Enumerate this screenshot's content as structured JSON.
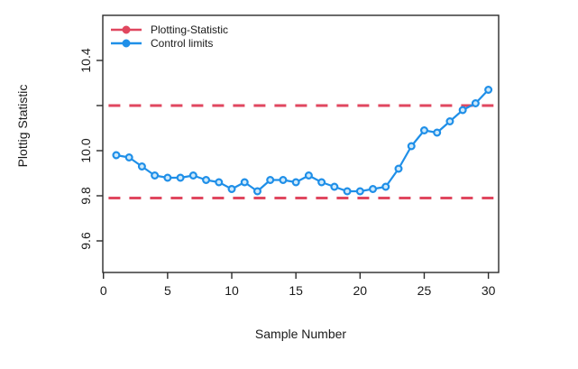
{
  "chart_data": {
    "type": "line",
    "title": "",
    "xlabel": "Sample Number",
    "ylabel": "Plottig Statistic",
    "xlim": [
      -0.05,
      30.8
    ],
    "ylim": [
      9.46,
      10.6
    ],
    "grid": false,
    "x_ticks": [
      0,
      5,
      10,
      15,
      20,
      25,
      30
    ],
    "y_ticks": [
      {
        "v": 10.4,
        "label": "10.4"
      },
      {
        "v": 10.2,
        "label": ""
      },
      {
        "v": 10.0,
        "label": "10.0"
      },
      {
        "v": 9.8,
        "label": "9.8"
      },
      {
        "v": 9.6,
        "label": "9.6"
      }
    ],
    "samples": [
      1,
      2,
      3,
      4,
      5,
      6,
      7,
      8,
      9,
      10,
      11,
      12,
      13,
      14,
      15,
      16,
      17,
      18,
      19,
      20,
      21,
      22,
      23,
      24,
      25,
      26,
      27,
      28,
      29,
      30
    ],
    "statistic": [
      9.98,
      9.97,
      9.93,
      9.89,
      9.88,
      9.88,
      9.89,
      9.87,
      9.86,
      9.83,
      9.86,
      9.82,
      9.87,
      9.87,
      9.86,
      9.89,
      9.86,
      9.84,
      9.82,
      9.82,
      9.83,
      9.84,
      9.92,
      10.02,
      10.09,
      10.08,
      10.13,
      10.18,
      10.21,
      10.27
    ],
    "upper_control_limit": 10.2,
    "lower_control_limit": 9.79,
    "legend": {
      "position": "top-left",
      "entries": [
        {
          "label": "Plotting-Statistic",
          "color": "#e0475f"
        },
        {
          "label": "Control limits",
          "color": "#1f8fe8"
        }
      ]
    },
    "colors": {
      "series_line": "#1f8fe8",
      "marker_fill": "#cde9fb",
      "control_limit_dash": "#e0475f",
      "axis_box": "#2b2b2b",
      "text": "#1a1a1a"
    }
  }
}
